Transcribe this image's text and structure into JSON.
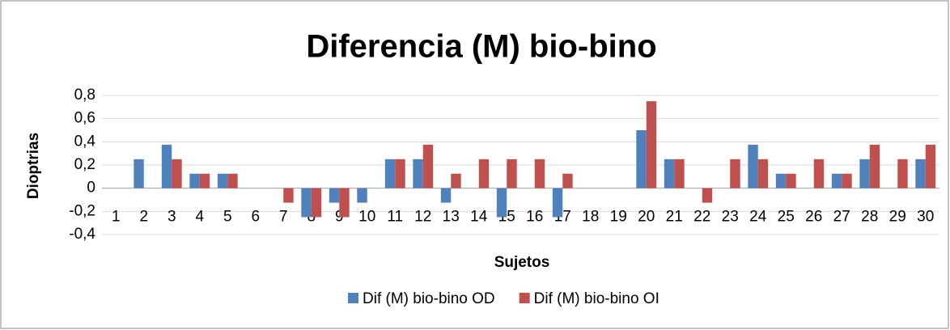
{
  "chart_data": {
    "type": "bar",
    "title": "Diferencia (M) bio-bino",
    "x_label": "Sujetos",
    "y_label": "Dioptrias",
    "categories": [
      "1",
      "2",
      "3",
      "4",
      "5",
      "6",
      "7",
      "8",
      "9",
      "10",
      "11",
      "12",
      "13",
      "14",
      "15",
      "16",
      "17",
      "18",
      "19",
      "20",
      "21",
      "22",
      "23",
      "24",
      "25",
      "26",
      "27",
      "28",
      "29",
      "30"
    ],
    "series": [
      {
        "name": "Dif (M) bio-bino OD",
        "color": "#4f81bd",
        "values": [
          0,
          0.25,
          0.375,
          0.125,
          0.125,
          0,
          0,
          -0.25,
          -0.125,
          -0.125,
          0.25,
          0.25,
          -0.125,
          0,
          -0.25,
          0,
          -0.25,
          0,
          0,
          0.5,
          0.25,
          0,
          0,
          0.375,
          0.125,
          0,
          0.125,
          0.25,
          0,
          0.25
        ]
      },
      {
        "name": "Dif (M) bio-bino OI",
        "color": "#c0504d",
        "values": [
          0,
          0,
          0.25,
          0.125,
          0.125,
          0,
          -0.125,
          -0.25,
          -0.25,
          0,
          0.25,
          0.375,
          0.125,
          0.25,
          0.25,
          0.25,
          0.125,
          0,
          0,
          0.75,
          0.25,
          -0.125,
          0.25,
          0.25,
          0.125,
          0.25,
          0.125,
          0.375,
          0.25,
          0.375
        ]
      }
    ],
    "ylim": [
      -0.4,
      0.8
    ],
    "yticks": [
      {
        "value": -0.4,
        "label": "-0,4"
      },
      {
        "value": -0.2,
        "label": "-0,2"
      },
      0,
      {
        "value": 0.2,
        "label": "0,2"
      },
      {
        "value": 0.4,
        "label": "0,4"
      },
      {
        "value": 0.6,
        "label": "0,6"
      },
      {
        "value": 0.8,
        "label": "0,8"
      }
    ],
    "grid": true,
    "legend": "bottom"
  }
}
